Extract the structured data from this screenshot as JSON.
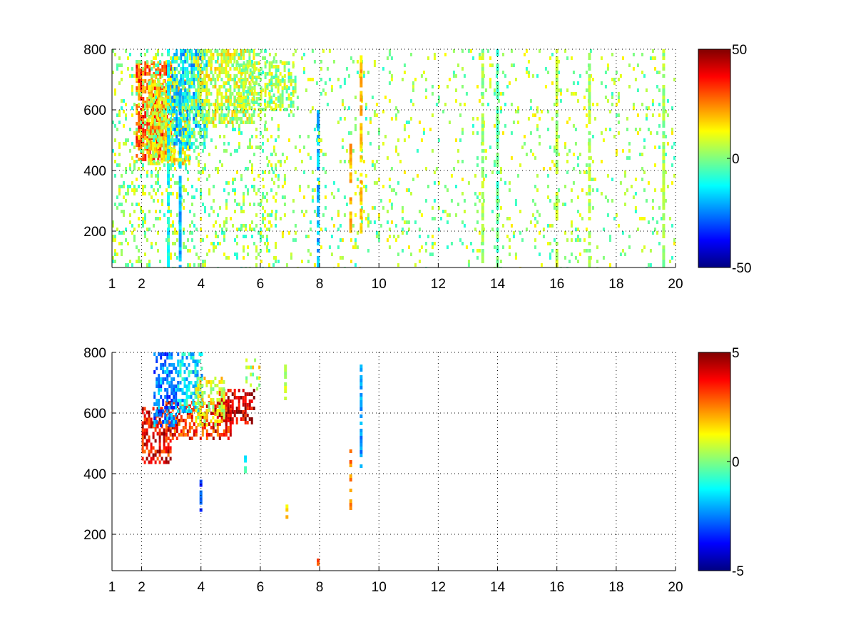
{
  "chart_data": [
    {
      "type": "heatmap",
      "title": "",
      "xlabel": "",
      "ylabel": "",
      "xlim": [
        1,
        20
      ],
      "ylim": [
        80,
        800
      ],
      "x_ticks": [
        1,
        2,
        4,
        6,
        8,
        10,
        12,
        14,
        16,
        18,
        20
      ],
      "y_ticks": [
        200,
        400,
        600,
        800
      ],
      "grid": true,
      "colormap": "jet",
      "colorbar": {
        "min": -50,
        "max": 50,
        "ticks": [
          50,
          0,
          -50
        ]
      },
      "clusters": [
        {
          "x": [
            1.8,
            3.0
          ],
          "y": [
            440,
            760
          ],
          "value": 28,
          "density": 0.75
        },
        {
          "x": [
            2.2,
            3.6
          ],
          "y": [
            420,
            700
          ],
          "value": 12,
          "density": 0.7
        },
        {
          "x": [
            3.0,
            4.2
          ],
          "y": [
            480,
            800
          ],
          "value": -15,
          "density": 0.7
        },
        {
          "x": [
            3.8,
            5.8
          ],
          "y": [
            560,
            800
          ],
          "value": 8,
          "density": 0.6
        },
        {
          "x": [
            5.2,
            7.2
          ],
          "y": [
            600,
            760
          ],
          "value": 4,
          "density": 0.45
        },
        {
          "x": [
            1.0,
            6.5
          ],
          "y": [
            80,
            800
          ],
          "value": 2,
          "density": 0.18
        },
        {
          "x": [
            6.0,
            20.0
          ],
          "y": [
            80,
            800
          ],
          "value": 3,
          "density": 0.08
        }
      ],
      "bands": [
        {
          "x": 2.9,
          "y": [
            80,
            800
          ],
          "value": -12
        },
        {
          "x": 3.3,
          "y": [
            80,
            700
          ],
          "value": -20
        },
        {
          "x": 7.95,
          "y": [
            80,
            600
          ],
          "value": -20
        },
        {
          "x": 9.05,
          "y": [
            200,
            500
          ],
          "value": 20
        },
        {
          "x": 9.4,
          "y": [
            200,
            780
          ],
          "value": 18
        },
        {
          "x": 13.5,
          "y": [
            80,
            800
          ],
          "value": 3
        },
        {
          "x": 14.0,
          "y": [
            80,
            800
          ],
          "value": -3
        },
        {
          "x": 16.0,
          "y": [
            80,
            800
          ],
          "value": 5
        },
        {
          "x": 17.1,
          "y": [
            80,
            800
          ],
          "value": 4
        },
        {
          "x": 19.6,
          "y": [
            80,
            800
          ],
          "value": 3
        }
      ]
    },
    {
      "type": "heatmap",
      "title": "",
      "xlabel": "",
      "ylabel": "",
      "xlim": [
        1,
        20
      ],
      "ylim": [
        80,
        800
      ],
      "x_ticks": [
        1,
        2,
        4,
        6,
        8,
        10,
        12,
        14,
        16,
        18,
        20
      ],
      "y_ticks": [
        200,
        400,
        600,
        800
      ],
      "grid": true,
      "colormap": "jet",
      "colorbar": {
        "min": -5,
        "max": 5,
        "ticks": [
          5,
          0,
          -5
        ]
      },
      "clusters": [
        {
          "x": [
            2.0,
            3.0
          ],
          "y": [
            440,
            620
          ],
          "value": 3.8,
          "density": 0.6
        },
        {
          "x": [
            2.8,
            5.0
          ],
          "y": [
            520,
            640
          ],
          "value": 3.5,
          "density": 0.55
        },
        {
          "x": [
            4.6,
            5.8
          ],
          "y": [
            570,
            680
          ],
          "value": 4.3,
          "density": 0.5
        },
        {
          "x": [
            2.4,
            3.2
          ],
          "y": [
            560,
            800
          ],
          "value": -2.5,
          "density": 0.55
        },
        {
          "x": [
            3.2,
            4.0
          ],
          "y": [
            600,
            800
          ],
          "value": -1.5,
          "density": 0.55
        },
        {
          "x": [
            3.8,
            4.8
          ],
          "y": [
            560,
            720
          ],
          "value": 1.0,
          "density": 0.45
        },
        {
          "x": [
            5.5,
            6.0
          ],
          "y": [
            680,
            780
          ],
          "value": 0.8,
          "density": 0.3
        }
      ],
      "bands": [
        {
          "x": 9.05,
          "y": [
            270,
            480
          ],
          "value": 2.5
        },
        {
          "x": 9.4,
          "y": [
            430,
            760
          ],
          "value": -2.2
        },
        {
          "x": 7.95,
          "y": [
            80,
            120
          ],
          "value": 3.0
        },
        {
          "x": 4.0,
          "y": [
            280,
            380
          ],
          "value": -3.0
        },
        {
          "x": 6.85,
          "y": [
            650,
            760
          ],
          "value": 0.5
        },
        {
          "x": 6.9,
          "y": [
            260,
            310
          ],
          "value": 1.5
        },
        {
          "x": 5.5,
          "y": [
            400,
            460
          ],
          "value": -1.0
        }
      ]
    }
  ]
}
